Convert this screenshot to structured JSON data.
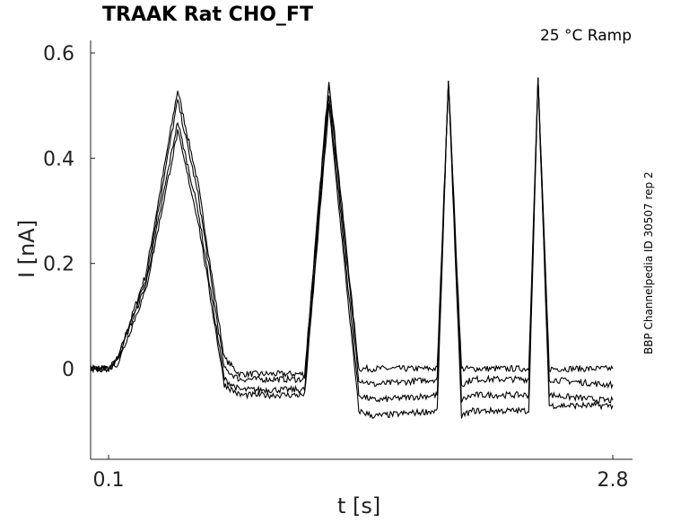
{
  "chart_data": {
    "type": "line",
    "title": "TRAAK  Rat  CHO_FT",
    "annotation": "25 °C  Ramp",
    "side_label": "BBP Channelpedia ID 30507 rep 2",
    "xlabel": "t [s]",
    "ylabel": "I [nA]",
    "xlim": [
      0.1,
      2.8
    ],
    "ylim": [
      -0.17,
      0.62
    ],
    "x_ticks": [
      0.1,
      2.8
    ],
    "x_tick_labels": [
      "0.1",
      "2.8"
    ],
    "y_ticks": [
      0,
      0.2,
      0.4,
      0.6
    ],
    "y_tick_labels": [
      "0",
      "0.2",
      "0.4",
      "0.6"
    ],
    "grid": false,
    "series": [
      {
        "baseline": 0.0,
        "points": [
          [
            0.0,
            0.0
          ],
          [
            0.1,
            0.0
          ],
          [
            0.15,
            0.02
          ],
          [
            0.3,
            0.18
          ],
          [
            0.47,
            0.53
          ],
          [
            0.58,
            0.35
          ],
          [
            0.72,
            0.02
          ],
          [
            0.8,
            -0.01
          ],
          [
            1.15,
            -0.01
          ],
          [
            1.28,
            0.55
          ],
          [
            1.44,
            0.0
          ],
          [
            1.52,
            0.0
          ],
          [
            1.86,
            0.0
          ],
          [
            1.92,
            0.55
          ],
          [
            1.99,
            0.0
          ],
          [
            2.05,
            0.0
          ],
          [
            2.35,
            0.0
          ],
          [
            2.4,
            0.55
          ],
          [
            2.46,
            0.0
          ],
          [
            2.75,
            0.0
          ],
          [
            2.8,
            0.0
          ]
        ]
      },
      {
        "baseline": -0.02,
        "points": [
          [
            0.0,
            0.0
          ],
          [
            0.1,
            0.0
          ],
          [
            0.15,
            0.02
          ],
          [
            0.3,
            0.17
          ],
          [
            0.47,
            0.51
          ],
          [
            0.58,
            0.33
          ],
          [
            0.72,
            0.0
          ],
          [
            0.8,
            -0.02
          ],
          [
            1.15,
            -0.02
          ],
          [
            1.28,
            0.54
          ],
          [
            1.44,
            -0.02
          ],
          [
            1.52,
            -0.03
          ],
          [
            1.86,
            -0.02
          ],
          [
            1.92,
            0.55
          ],
          [
            1.99,
            -0.03
          ],
          [
            2.05,
            -0.02
          ],
          [
            2.35,
            -0.02
          ],
          [
            2.4,
            0.55
          ],
          [
            2.46,
            -0.02
          ],
          [
            2.75,
            -0.03
          ],
          [
            2.8,
            -0.03
          ]
        ]
      },
      {
        "baseline": -0.04,
        "points": [
          [
            0.0,
            0.0
          ],
          [
            0.1,
            0.0
          ],
          [
            0.15,
            0.02
          ],
          [
            0.3,
            0.16
          ],
          [
            0.47,
            0.47
          ],
          [
            0.58,
            0.3
          ],
          [
            0.72,
            -0.02
          ],
          [
            0.8,
            -0.04
          ],
          [
            1.15,
            -0.04
          ],
          [
            1.28,
            0.52
          ],
          [
            1.44,
            -0.05
          ],
          [
            1.52,
            -0.06
          ],
          [
            1.86,
            -0.05
          ],
          [
            1.92,
            0.55
          ],
          [
            1.99,
            -0.06
          ],
          [
            2.05,
            -0.05
          ],
          [
            2.35,
            -0.05
          ],
          [
            2.4,
            0.55
          ],
          [
            2.46,
            -0.05
          ],
          [
            2.75,
            -0.06
          ],
          [
            2.8,
            -0.06
          ]
        ]
      },
      {
        "baseline": -0.05,
        "points": [
          [
            0.0,
            0.0
          ],
          [
            0.1,
            0.0
          ],
          [
            0.15,
            0.01
          ],
          [
            0.3,
            0.15
          ],
          [
            0.47,
            0.45
          ],
          [
            0.58,
            0.28
          ],
          [
            0.72,
            -0.03
          ],
          [
            0.8,
            -0.05
          ],
          [
            1.15,
            -0.05
          ],
          [
            1.28,
            0.5
          ],
          [
            1.44,
            -0.08
          ],
          [
            1.52,
            -0.09
          ],
          [
            1.86,
            -0.08
          ],
          [
            1.92,
            0.55
          ],
          [
            1.99,
            -0.09
          ],
          [
            2.05,
            -0.08
          ],
          [
            2.35,
            -0.08
          ],
          [
            2.4,
            0.55
          ],
          [
            2.46,
            -0.07
          ],
          [
            2.75,
            -0.07
          ],
          [
            2.8,
            -0.07
          ]
        ]
      }
    ]
  }
}
